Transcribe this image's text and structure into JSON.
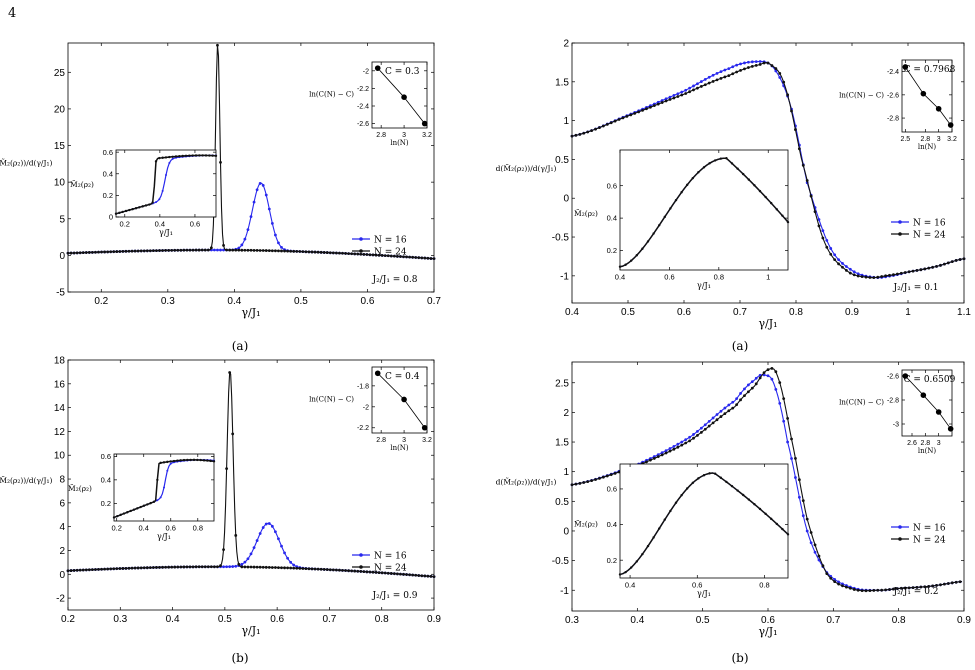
{
  "page_number": "4",
  "legend_labels": [
    "N = 16",
    "N = 24"
  ],
  "colors": {
    "n16": "#2828ee",
    "n24": "#111111",
    "axis": "#000000"
  },
  "chart_data": [
    {
      "type": "line",
      "caption": "(a)",
      "xlabel": "γ/J₁",
      "ylabel": "d(M̃₂(ρ₂))/d(γ/J₁)",
      "xlim": [
        0.15,
        0.7
      ],
      "ylim": [
        -5,
        29
      ],
      "xticks": [
        0.2,
        0.3,
        0.4,
        0.5,
        0.6,
        0.7
      ],
      "yticks": [
        -5,
        0,
        5,
        10,
        15,
        20,
        25
      ],
      "annotation": "J₂/J₁ = 0.8",
      "legend_position": "right-middle",
      "series": [
        {
          "name": "N = 16",
          "gamma_c": 0.44,
          "peak": 9.2,
          "width": 0.018,
          "a": [
            0.7,
            -0.2,
            -0.55
          ]
        },
        {
          "name": "N = 24",
          "gamma_c": 0.375,
          "peak": 28.2,
          "width": 0.0045,
          "a": [
            0.7,
            -0.2,
            -0.55
          ]
        }
      ],
      "inset": {
        "xlabel": "γ/J₁",
        "ylabel": "M̃₂(ρ₂)",
        "xlim": [
          0.15,
          0.72
        ],
        "ylim": [
          0,
          0.62
        ],
        "xticks": [
          0.2,
          0.4,
          0.6
        ],
        "yticks": [
          0,
          0.2,
          0.4,
          0.6
        ]
      },
      "fit": {
        "label": "C = 0.3",
        "ylabel": "ln(C(N) − C)",
        "xlabel": "ln(N)",
        "xlim": [
          2.72,
          3.2
        ],
        "ylim": [
          -2.65,
          -1.9
        ],
        "xticks": [
          2.8,
          3,
          3.2
        ],
        "yticks": [
          -2,
          -2.2,
          -2.4,
          -2.6
        ],
        "points": [
          [
            2.77,
            -1.97
          ],
          [
            3.0,
            -2.3
          ],
          [
            3.18,
            -2.6
          ]
        ]
      }
    },
    {
      "type": "line",
      "caption": "(b)",
      "xlabel": "γ/J₁",
      "ylabel": "d(M̃₂(ρ₂))/d(γ/J₁)",
      "xlim": [
        0.2,
        0.9
      ],
      "ylim": [
        -3,
        18
      ],
      "xticks": [
        0.2,
        0.3,
        0.4,
        0.5,
        0.6,
        0.7,
        0.8,
        0.9
      ],
      "yticks": [
        -2,
        0,
        2,
        4,
        6,
        8,
        10,
        12,
        14,
        16,
        18
      ],
      "annotation": "J₂/J₁ = 0.9",
      "legend_position": "right-middle",
      "series": [
        {
          "name": "N = 16",
          "gamma_c": 0.583,
          "peak": 3.7,
          "width": 0.03,
          "a": [
            0.4,
            0.3,
            -0.8
          ]
        },
        {
          "name": "N = 24",
          "gamma_c": 0.51,
          "peak": 16.5,
          "width": 0.008,
          "a": [
            0.4,
            0.3,
            -0.8
          ]
        }
      ],
      "inset": {
        "xlabel": "γ/J₁",
        "ylabel": "M̃₂(ρ₂)",
        "xlim": [
          0.18,
          0.92
        ],
        "ylim": [
          0.05,
          0.62
        ],
        "xticks": [
          0.2,
          0.4,
          0.6,
          0.8
        ],
        "yticks": [
          0.2,
          0.4,
          0.6
        ]
      },
      "fit": {
        "label": "C = 0.4",
        "ylabel": "ln(C(N) − C)",
        "xlabel": "ln(N)",
        "xlim": [
          2.72,
          3.2
        ],
        "ylim": [
          -2.25,
          -1.62
        ],
        "xticks": [
          2.8,
          3,
          3.2
        ],
        "yticks": [
          -1.8,
          -2,
          -2.2
        ],
        "points": [
          [
            2.77,
            -1.68
          ],
          [
            3.0,
            -1.93
          ],
          [
            3.18,
            -2.2
          ]
        ]
      }
    },
    {
      "type": "line",
      "caption": "(a)",
      "xlabel": "γ/J₁",
      "ylabel": "d(M̃₂(ρ₂))/d(γ/J₁)",
      "xlim": [
        0.4,
        1.1
      ],
      "ylim": [
        -1.35,
        2.0
      ],
      "xticks": [
        0.4,
        0.5,
        0.6,
        0.7,
        0.8,
        0.9,
        1,
        1.1
      ],
      "yticks": [
        -1,
        -0.5,
        0,
        0.5,
        1,
        1.5,
        2
      ],
      "annotation": "J₂/J₁ = 0.1",
      "legend_position": "right-middle",
      "series": [
        {
          "name": "N = 16",
          "points": [
            [
              0.4,
              0.8
            ],
            [
              0.5,
              1.07
            ],
            [
              0.6,
              1.38
            ],
            [
              0.68,
              1.67
            ],
            [
              0.73,
              1.76
            ],
            [
              0.76,
              1.68
            ],
            [
              0.79,
              1.2
            ],
            [
              0.82,
              0.2
            ],
            [
              0.86,
              -0.62
            ],
            [
              0.9,
              -0.93
            ],
            [
              0.94,
              -1.02
            ],
            [
              0.97,
              -1.0
            ],
            [
              1.0,
              -0.95
            ],
            [
              1.05,
              -0.88
            ],
            [
              1.1,
              -0.78
            ]
          ]
        },
        {
          "name": "N = 24",
          "points": [
            [
              0.4,
              0.8
            ],
            [
              0.5,
              1.06
            ],
            [
              0.6,
              1.34
            ],
            [
              0.68,
              1.58
            ],
            [
              0.735,
              1.72
            ],
            [
              0.755,
              1.72
            ],
            [
              0.78,
              1.45
            ],
            [
              0.81,
              0.5
            ],
            [
              0.85,
              -0.55
            ],
            [
              0.89,
              -0.93
            ],
            [
              0.93,
              -1.02
            ],
            [
              0.96,
              -1.0
            ],
            [
              1.0,
              -0.95
            ],
            [
              1.05,
              -0.88
            ],
            [
              1.1,
              -0.78
            ]
          ]
        }
      ],
      "inset": {
        "xlabel": "γ/J₁",
        "ylabel": "M̃₂(ρ₂)",
        "xlim": [
          0.4,
          1.08
        ],
        "ylim": [
          0.08,
          0.82
        ],
        "xticks": [
          0.4,
          0.6,
          0.8,
          1
        ],
        "yticks": [
          0.2,
          0.4,
          0.6
        ]
      },
      "fit": {
        "label": "C = 0.7968",
        "ylabel": "ln(C(N) − C)",
        "xlabel": "ln(N)",
        "xlim": [
          2.45,
          3.2
        ],
        "ylim": [
          -2.92,
          -2.3
        ],
        "xticks": [
          2.5,
          2.8,
          3,
          3.2
        ],
        "yticks": [
          -2.4,
          -2.6,
          -2.8
        ],
        "points": [
          [
            2.5,
            -2.36
          ],
          [
            2.77,
            -2.59
          ],
          [
            3.0,
            -2.72
          ],
          [
            3.18,
            -2.86
          ]
        ]
      }
    },
    {
      "type": "line",
      "caption": "(b)",
      "xlabel": "γ/J₁",
      "ylabel": "d(M̃₂(ρ₂))/d(γ/J₁)",
      "xlim": [
        0.3,
        0.9
      ],
      "ylim": [
        -1.35,
        2.85
      ],
      "xticks": [
        0.3,
        0.4,
        0.5,
        0.6,
        0.7,
        0.8,
        0.9
      ],
      "yticks": [
        -1,
        -0.5,
        0,
        0.5,
        1,
        1.5,
        2,
        2.5
      ],
      "annotation": "J₂/J₁ = 0.2",
      "legend_position": "right-middle",
      "series": [
        {
          "name": "N = 16",
          "points": [
            [
              0.3,
              0.78
            ],
            [
              0.4,
              1.12
            ],
            [
              0.48,
              1.58
            ],
            [
              0.55,
              2.2
            ],
            [
              0.58,
              2.55
            ],
            [
              0.595,
              2.63
            ],
            [
              0.61,
              2.45
            ],
            [
              0.63,
              1.5
            ],
            [
              0.66,
              0.0
            ],
            [
              0.69,
              -0.7
            ],
            [
              0.73,
              -0.96
            ],
            [
              0.77,
              -1.0
            ],
            [
              0.8,
              -0.97
            ],
            [
              0.85,
              -0.93
            ],
            [
              0.9,
              -0.85
            ]
          ]
        },
        {
          "name": "N = 24",
          "points": [
            [
              0.3,
              0.78
            ],
            [
              0.4,
              1.1
            ],
            [
              0.48,
              1.52
            ],
            [
              0.55,
              2.1
            ],
            [
              0.58,
              2.45
            ],
            [
              0.6,
              2.72
            ],
            [
              0.615,
              2.6
            ],
            [
              0.635,
              1.6
            ],
            [
              0.66,
              0.2
            ],
            [
              0.69,
              -0.72
            ],
            [
              0.73,
              -0.98
            ],
            [
              0.77,
              -1.0
            ],
            [
              0.8,
              -0.97
            ],
            [
              0.85,
              -0.93
            ],
            [
              0.9,
              -0.85
            ]
          ]
        }
      ],
      "inset": {
        "xlabel": "γ/J₁",
        "ylabel": "M̃₂(ρ₂)",
        "xlim": [
          0.37,
          0.87
        ],
        "ylim": [
          0.1,
          0.74
        ],
        "xticks": [
          0.4,
          0.6,
          0.8
        ],
        "yticks": [
          0.2,
          0.4,
          0.6
        ]
      },
      "fit": {
        "label": "C = 0.6509",
        "ylabel": "ln(C(N) − C)",
        "xlabel": "ln(N)",
        "xlim": [
          2.45,
          3.2
        ],
        "ylim": [
          -3.1,
          -2.55
        ],
        "xticks": [
          2.6,
          2.8,
          3
        ],
        "yticks": [
          -2.6,
          -2.8,
          -3
        ],
        "points": [
          [
            2.5,
            -2.6
          ],
          [
            2.77,
            -2.76
          ],
          [
            3.0,
            -2.9
          ],
          [
            3.18,
            -3.04
          ]
        ]
      }
    }
  ]
}
